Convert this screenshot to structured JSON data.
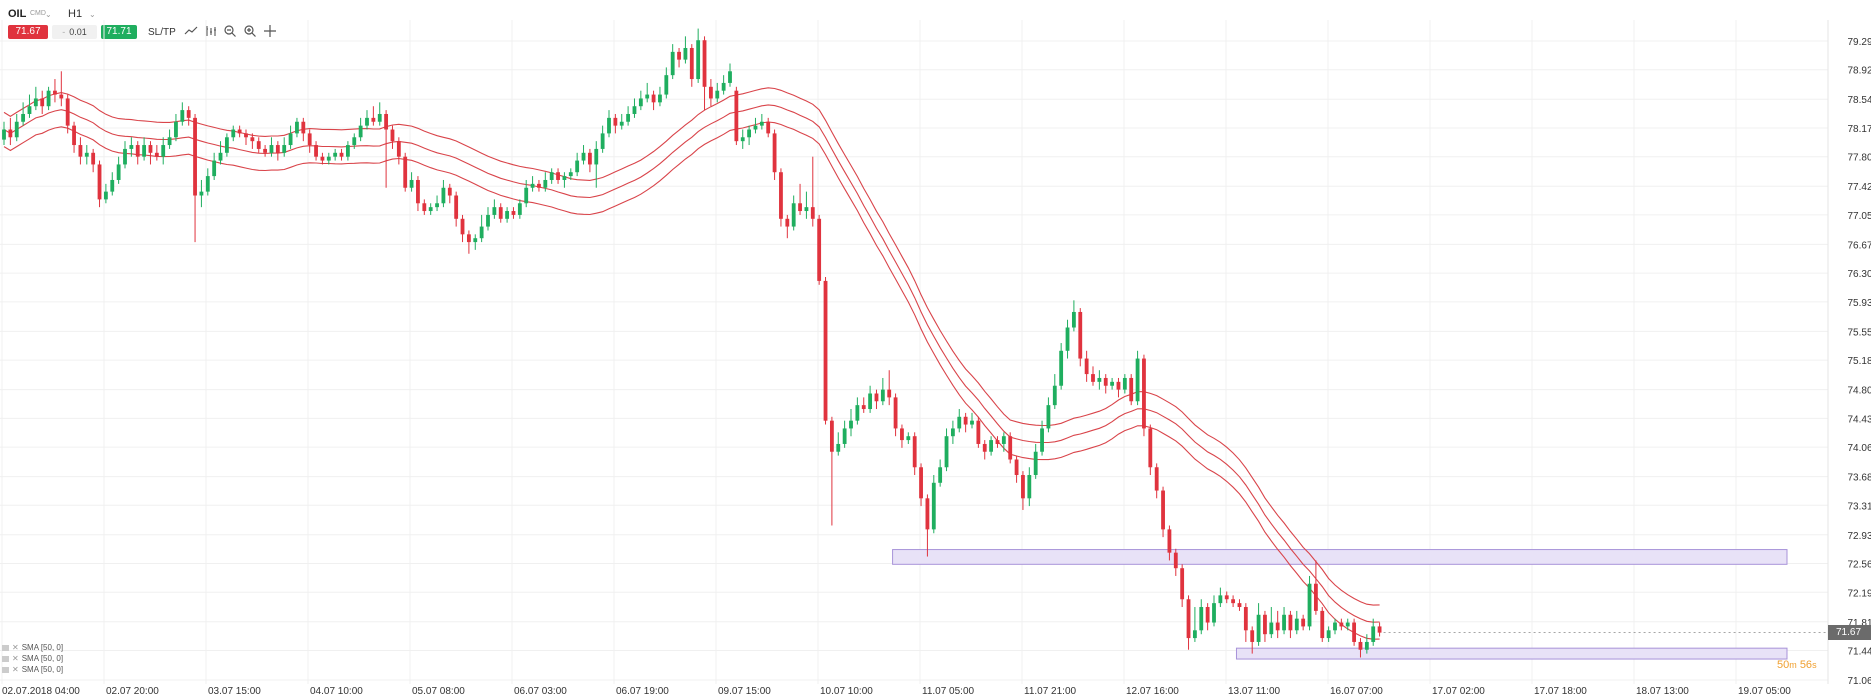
{
  "header": {
    "symbol": "OIL",
    "instrument_type": "CMD",
    "timeframe": "H1",
    "sell_price": "71.67",
    "lot_size": "0.01",
    "buy_price": "71.71",
    "sltp_label": "SL/TP",
    "icons": [
      "line-chart-icon",
      "indicators-icon",
      "zoom-out-icon",
      "zoom-in-icon",
      "crosshair-icon"
    ]
  },
  "legend": {
    "indicators": [
      "SMA [50, 0]",
      "SMA [50, 0]",
      "SMA [50, 0]"
    ]
  },
  "current_price": "71.67",
  "countdown": {
    "minutes": "50",
    "minutes_unit": "m",
    "seconds": "56",
    "seconds_unit": "s"
  },
  "colors": {
    "bull": "#1fae5f",
    "bear": "#e0333e",
    "sma": "#d9444a",
    "zone_fill": "#e8e2f7",
    "zone_stroke": "#a893d9",
    "grid": "#f0f0f0"
  },
  "chart_data": {
    "type": "candlestick",
    "symbol": "OIL",
    "timeframe": "H1",
    "y_ticks": [
      "79.29",
      "78.92",
      "78.54",
      "78.17",
      "77.80",
      "77.42",
      "77.05",
      "76.67",
      "76.30",
      "75.93",
      "75.55",
      "75.18",
      "74.80",
      "74.43",
      "74.06",
      "73.68",
      "73.31",
      "72.93",
      "72.56",
      "72.19",
      "71.81",
      "71.44",
      "71.06"
    ],
    "x_ticks": [
      "02.07.2018 04:00",
      "02.07 20:00",
      "03.07 15:00",
      "04.07 10:00",
      "05.07 08:00",
      "06.07 03:00",
      "06.07 19:00",
      "09.07 15:00",
      "10.07 10:00",
      "11.07 05:00",
      "11.07 21:00",
      "12.07 16:00",
      "13.07 11:00",
      "16.07 07:00",
      "17.07 02:00",
      "17.07 18:00",
      "18.07 13:00",
      "19.07 05:00"
    ],
    "ylim": [
      71.0,
      79.4
    ],
    "overlays": [
      {
        "type": "sma",
        "label": "SMA [50, 0]",
        "band": "upper"
      },
      {
        "type": "sma",
        "label": "SMA [50, 0]",
        "band": "middle"
      },
      {
        "type": "sma",
        "label": "SMA [50, 0]",
        "band": "lower"
      }
    ],
    "zones": [
      {
        "y_from": 72.55,
        "y_to": 72.74,
        "x_from_candle": 140,
        "x_to_candle": 1000
      },
      {
        "y_from": 71.33,
        "y_to": 71.47,
        "x_from_candle": 194,
        "x_to_candle": 233
      }
    ],
    "candles": [
      [
        78.02,
        78.15,
        78.25,
        77.95
      ],
      [
        78.15,
        78.05,
        78.3,
        77.95
      ],
      [
        78.05,
        78.25,
        78.35,
        78.0
      ],
      [
        78.25,
        78.35,
        78.5,
        78.2
      ],
      [
        78.35,
        78.45,
        78.6,
        78.3
      ],
      [
        78.45,
        78.55,
        78.7,
        78.4
      ],
      [
        78.55,
        78.45,
        78.65,
        78.35
      ],
      [
        78.45,
        78.65,
        78.7,
        78.4
      ],
      [
        78.65,
        78.6,
        78.8,
        78.5
      ],
      [
        78.6,
        78.55,
        78.9,
        78.45
      ],
      [
        78.55,
        78.2,
        78.6,
        78.1
      ],
      [
        78.2,
        77.95,
        78.25,
        77.85
      ],
      [
        77.95,
        77.8,
        78.05,
        77.7
      ],
      [
        77.8,
        77.85,
        77.95,
        77.7
      ],
      [
        77.85,
        77.7,
        77.9,
        77.6
      ],
      [
        77.7,
        77.25,
        77.75,
        77.15
      ],
      [
        77.25,
        77.35,
        77.45,
        77.2
      ],
      [
        77.35,
        77.5,
        77.6,
        77.3
      ],
      [
        77.5,
        77.7,
        77.8,
        77.45
      ],
      [
        77.7,
        77.9,
        78.0,
        77.65
      ],
      [
        77.9,
        77.95,
        78.05,
        77.8
      ],
      [
        77.95,
        77.8,
        78.0,
        77.7
      ],
      [
        77.8,
        77.95,
        78.05,
        77.75
      ],
      [
        77.95,
        77.85,
        78.0,
        77.7
      ],
      [
        77.85,
        77.8,
        77.95,
        77.75
      ],
      [
        77.8,
        77.95,
        78.05,
        77.7
      ],
      [
        77.95,
        78.05,
        78.15,
        77.9
      ],
      [
        78.05,
        78.25,
        78.35,
        78.0
      ],
      [
        78.25,
        78.4,
        78.5,
        78.2
      ],
      [
        78.4,
        78.3,
        78.45,
        78.2
      ],
      [
        78.3,
        77.3,
        78.35,
        76.7
      ],
      [
        77.3,
        77.35,
        77.5,
        77.15
      ],
      [
        77.35,
        77.55,
        77.65,
        77.3
      ],
      [
        77.55,
        77.75,
        77.85,
        77.5
      ],
      [
        77.75,
        77.85,
        78.0,
        77.7
      ],
      [
        77.85,
        78.05,
        78.1,
        77.8
      ],
      [
        78.05,
        78.15,
        78.2,
        78.0
      ],
      [
        78.15,
        78.1,
        78.2,
        78.05
      ],
      [
        78.1,
        78.05,
        78.15,
        77.95
      ],
      [
        78.05,
        78.0,
        78.1,
        77.9
      ],
      [
        78.0,
        77.9,
        78.05,
        77.85
      ],
      [
        77.9,
        77.85,
        77.95,
        77.8
      ],
      [
        77.85,
        77.95,
        78.05,
        77.8
      ],
      [
        77.95,
        77.85,
        78.0,
        77.75
      ],
      [
        77.85,
        77.95,
        78.05,
        77.8
      ],
      [
        77.95,
        78.1,
        78.2,
        77.9
      ],
      [
        78.1,
        78.25,
        78.3,
        78.05
      ],
      [
        78.25,
        78.1,
        78.3,
        78.0
      ],
      [
        78.1,
        77.95,
        78.15,
        77.85
      ],
      [
        77.95,
        77.8,
        78.0,
        77.75
      ],
      [
        77.8,
        77.75,
        77.85,
        77.7
      ],
      [
        77.75,
        77.8,
        77.85,
        77.7
      ],
      [
        77.8,
        77.85,
        77.9,
        77.75
      ],
      [
        77.85,
        77.8,
        77.9,
        77.75
      ],
      [
        77.8,
        77.95,
        78.0,
        77.75
      ],
      [
        77.95,
        78.05,
        78.1,
        77.9
      ],
      [
        78.05,
        78.2,
        78.3,
        78.0
      ],
      [
        78.2,
        78.3,
        78.4,
        78.15
      ],
      [
        78.3,
        78.25,
        78.45,
        78.2
      ],
      [
        78.25,
        78.35,
        78.5,
        78.2
      ],
      [
        78.35,
        78.15,
        78.4,
        77.4
      ],
      [
        78.15,
        78.0,
        78.2,
        77.9
      ],
      [
        78.0,
        77.8,
        78.05,
        77.7
      ],
      [
        77.8,
        77.4,
        77.85,
        77.35
      ],
      [
        77.4,
        77.5,
        77.6,
        77.35
      ],
      [
        77.5,
        77.2,
        77.55,
        77.1
      ],
      [
        77.2,
        77.1,
        77.25,
        77.05
      ],
      [
        77.1,
        77.15,
        77.2,
        77.05
      ],
      [
        77.15,
        77.2,
        77.3,
        77.1
      ],
      [
        77.2,
        77.4,
        77.5,
        77.15
      ],
      [
        77.4,
        77.3,
        77.45,
        77.2
      ],
      [
        77.3,
        77.0,
        77.35,
        76.9
      ],
      [
        77.0,
        76.8,
        77.05,
        76.7
      ],
      [
        76.8,
        76.7,
        76.85,
        76.55
      ],
      [
        76.7,
        76.75,
        76.8,
        76.6
      ],
      [
        76.75,
        76.9,
        77.05,
        76.7
      ],
      [
        76.9,
        77.05,
        77.15,
        76.85
      ],
      [
        77.05,
        77.15,
        77.25,
        77.0
      ],
      [
        77.15,
        77.0,
        77.2,
        76.95
      ],
      [
        77.0,
        77.1,
        77.15,
        76.95
      ],
      [
        77.1,
        77.05,
        77.15,
        77.0
      ],
      [
        77.05,
        77.2,
        77.25,
        77.0
      ],
      [
        77.2,
        77.4,
        77.5,
        77.15
      ],
      [
        77.4,
        77.45,
        77.55,
        77.35
      ],
      [
        77.45,
        77.4,
        77.5,
        77.35
      ],
      [
        77.4,
        77.5,
        77.6,
        77.35
      ],
      [
        77.5,
        77.6,
        77.65,
        77.45
      ],
      [
        77.6,
        77.5,
        77.65,
        77.45
      ],
      [
        77.5,
        77.55,
        77.6,
        77.4
      ],
      [
        77.55,
        77.6,
        77.65,
        77.5
      ],
      [
        77.6,
        77.75,
        77.85,
        77.55
      ],
      [
        77.75,
        77.85,
        77.95,
        77.7
      ],
      [
        77.85,
        77.7,
        77.9,
        77.6
      ],
      [
        77.7,
        77.9,
        78.0,
        77.4
      ],
      [
        77.9,
        78.1,
        78.2,
        77.85
      ],
      [
        78.1,
        78.3,
        78.4,
        78.05
      ],
      [
        78.3,
        78.2,
        78.35,
        78.1
      ],
      [
        78.2,
        78.25,
        78.35,
        78.15
      ],
      [
        78.25,
        78.35,
        78.45,
        78.2
      ],
      [
        78.35,
        78.45,
        78.55,
        78.3
      ],
      [
        78.45,
        78.55,
        78.65,
        78.4
      ],
      [
        78.55,
        78.6,
        78.75,
        78.5
      ],
      [
        78.6,
        78.5,
        78.65,
        78.4
      ],
      [
        78.5,
        78.6,
        78.7,
        78.45
      ],
      [
        78.6,
        78.85,
        78.95,
        78.55
      ],
      [
        78.85,
        79.15,
        79.25,
        78.8
      ],
      [
        79.15,
        79.05,
        79.2,
        78.95
      ],
      [
        79.05,
        79.2,
        79.35,
        79.0
      ],
      [
        79.2,
        78.8,
        79.25,
        78.7
      ],
      [
        78.8,
        79.3,
        79.45,
        78.75
      ],
      [
        79.3,
        78.7,
        79.35,
        78.4
      ],
      [
        78.7,
        78.55,
        78.8,
        78.45
      ],
      [
        78.55,
        78.65,
        78.75,
        78.5
      ],
      [
        78.65,
        78.75,
        78.85,
        78.6
      ],
      [
        78.75,
        78.9,
        79.0,
        78.7
      ],
      [
        78.65,
        78.0,
        78.7,
        77.95
      ],
      [
        78.0,
        78.05,
        78.15,
        77.9
      ],
      [
        78.05,
        78.15,
        78.2,
        77.95
      ],
      [
        78.15,
        78.2,
        78.3,
        78.1
      ],
      [
        78.2,
        78.25,
        78.35,
        78.15
      ],
      [
        78.25,
        78.1,
        78.3,
        78.05
      ],
      [
        78.1,
        77.6,
        78.15,
        77.5
      ],
      [
        77.6,
        77.0,
        77.65,
        76.9
      ],
      [
        77.0,
        76.9,
        77.05,
        76.75
      ],
      [
        76.9,
        77.2,
        77.3,
        76.85
      ],
      [
        77.2,
        77.1,
        77.45,
        77.05
      ],
      [
        77.1,
        77.15,
        77.35,
        77.0
      ],
      [
        77.15,
        77.0,
        77.8,
        76.9
      ],
      [
        77.0,
        76.2,
        77.05,
        76.15
      ],
      [
        76.2,
        74.4,
        76.25,
        74.35
      ],
      [
        74.4,
        74.0,
        74.45,
        73.05
      ],
      [
        74.0,
        74.1,
        74.25,
        73.95
      ],
      [
        74.1,
        74.3,
        74.4,
        74.05
      ],
      [
        74.3,
        74.4,
        74.55,
        74.2
      ],
      [
        74.4,
        74.6,
        74.7,
        74.35
      ],
      [
        74.6,
        74.55,
        74.7,
        74.5
      ],
      [
        74.55,
        74.75,
        74.85,
        74.5
      ],
      [
        74.75,
        74.65,
        74.8,
        74.55
      ],
      [
        74.65,
        74.8,
        74.95,
        74.6
      ],
      [
        74.8,
        74.7,
        75.05,
        74.6
      ],
      [
        74.7,
        74.3,
        74.75,
        74.2
      ],
      [
        74.3,
        74.15,
        74.35,
        74.05
      ],
      [
        74.15,
        74.2,
        74.25,
        74.1
      ],
      [
        74.2,
        73.8,
        74.25,
        73.7
      ],
      [
        73.8,
        73.4,
        73.85,
        73.3
      ],
      [
        73.4,
        73.0,
        73.45,
        72.65
      ],
      [
        73.0,
        73.6,
        73.7,
        72.95
      ],
      [
        73.6,
        73.8,
        73.9,
        73.55
      ],
      [
        73.8,
        74.2,
        74.3,
        73.75
      ],
      [
        74.2,
        74.3,
        74.4,
        74.1
      ],
      [
        74.3,
        74.45,
        74.55,
        74.25
      ],
      [
        74.45,
        74.35,
        74.5,
        74.25
      ],
      [
        74.35,
        74.4,
        74.5,
        74.3
      ],
      [
        74.4,
        74.1,
        74.45,
        74.05
      ],
      [
        74.1,
        74.0,
        74.15,
        73.9
      ],
      [
        74.0,
        74.15,
        74.2,
        73.95
      ],
      [
        74.15,
        74.1,
        74.2,
        74.05
      ],
      [
        74.1,
        74.2,
        74.25,
        74.0
      ],
      [
        74.2,
        73.9,
        74.25,
        73.85
      ],
      [
        73.9,
        73.7,
        73.95,
        73.6
      ],
      [
        73.7,
        73.4,
        73.75,
        73.25
      ],
      [
        73.4,
        73.7,
        73.8,
        73.3
      ],
      [
        73.7,
        74.0,
        74.1,
        73.65
      ],
      [
        74.0,
        74.3,
        74.4,
        73.95
      ],
      [
        74.3,
        74.6,
        74.7,
        74.25
      ],
      [
        74.6,
        74.85,
        75.0,
        74.55
      ],
      [
        74.85,
        75.3,
        75.4,
        74.8
      ],
      [
        75.3,
        75.6,
        75.7,
        75.2
      ],
      [
        75.6,
        75.8,
        75.95,
        75.55
      ],
      [
        75.8,
        75.2,
        75.85,
        75.1
      ],
      [
        75.2,
        75.0,
        75.3,
        74.9
      ],
      [
        75.0,
        74.9,
        75.1,
        74.85
      ],
      [
        74.9,
        74.95,
        75.05,
        74.8
      ],
      [
        74.95,
        74.85,
        75.0,
        74.75
      ],
      [
        74.85,
        74.9,
        74.95,
        74.8
      ],
      [
        74.9,
        74.8,
        74.95,
        74.7
      ],
      [
        74.8,
        74.95,
        75.0,
        74.75
      ],
      [
        74.95,
        74.65,
        75.0,
        74.6
      ],
      [
        74.65,
        75.2,
        75.3,
        74.6
      ],
      [
        75.2,
        74.3,
        75.25,
        74.2
      ],
      [
        74.3,
        73.8,
        74.35,
        73.7
      ],
      [
        73.8,
        73.5,
        73.85,
        73.4
      ],
      [
        73.5,
        73.0,
        73.55,
        72.9
      ],
      [
        73.0,
        72.7,
        73.05,
        72.6
      ],
      [
        72.7,
        72.5,
        72.75,
        72.4
      ],
      [
        72.5,
        72.1,
        72.55,
        72.0
      ],
      [
        72.1,
        71.6,
        72.15,
        71.45
      ],
      [
        71.6,
        71.7,
        72.0,
        71.55
      ],
      [
        71.7,
        72.0,
        72.1,
        71.65
      ],
      [
        72.0,
        71.8,
        72.05,
        71.7
      ],
      [
        71.8,
        72.05,
        72.15,
        71.75
      ],
      [
        72.05,
        72.15,
        72.25,
        72.0
      ],
      [
        72.15,
        72.1,
        72.2,
        72.05
      ],
      [
        72.1,
        72.05,
        72.15,
        72.0
      ],
      [
        72.05,
        72.0,
        72.1,
        71.95
      ],
      [
        72.0,
        71.7,
        72.05,
        71.55
      ],
      [
        71.7,
        71.55,
        71.75,
        71.4
      ],
      [
        71.55,
        71.9,
        72.05,
        71.5
      ],
      [
        71.9,
        71.65,
        71.95,
        71.55
      ],
      [
        71.65,
        71.8,
        72.0,
        71.6
      ],
      [
        71.8,
        71.7,
        71.95,
        71.6
      ],
      [
        71.7,
        71.9,
        72.0,
        71.65
      ],
      [
        71.9,
        71.7,
        71.95,
        71.6
      ],
      [
        71.7,
        71.85,
        71.95,
        71.65
      ],
      [
        71.85,
        71.75,
        71.9,
        71.7
      ],
      [
        71.75,
        72.3,
        72.4,
        71.7
      ],
      [
        72.3,
        71.95,
        72.6,
        71.9
      ],
      [
        71.95,
        71.6,
        72.0,
        71.55
      ],
      [
        71.6,
        71.7,
        71.75,
        71.55
      ],
      [
        71.7,
        71.8,
        71.85,
        71.65
      ],
      [
        71.8,
        71.75,
        71.85,
        71.7
      ],
      [
        71.75,
        71.8,
        71.85,
        71.7
      ],
      [
        71.8,
        71.55,
        71.85,
        71.5
      ],
      [
        71.55,
        71.45,
        71.6,
        71.35
      ],
      [
        71.45,
        71.55,
        71.65,
        71.4
      ],
      [
        71.55,
        71.75,
        71.85,
        71.5
      ],
      [
        71.75,
        71.67,
        71.8,
        71.62
      ]
    ]
  }
}
